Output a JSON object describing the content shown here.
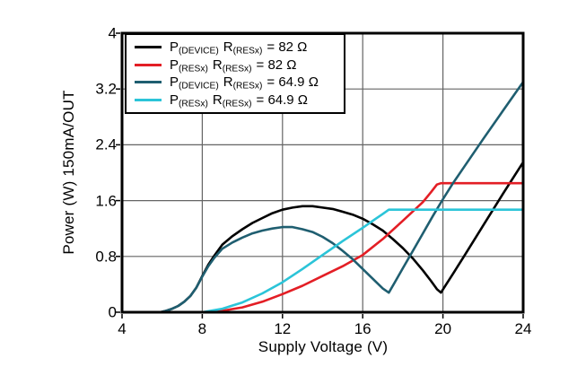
{
  "chart_data": {
    "type": "line",
    "title": "",
    "xlabel": "Supply Voltage (V)",
    "ylabel": "Power (W) 150mA/OUT",
    "xlim": [
      4,
      24
    ],
    "ylim": [
      0,
      4
    ],
    "xticks": [
      4,
      8,
      12,
      16,
      20,
      24
    ],
    "xtick_labels": [
      "4",
      "8",
      "12",
      "16",
      "20",
      "24"
    ],
    "yticks": [
      0,
      0.8,
      1.6,
      2.4,
      3.2,
      4
    ],
    "ytick_labels": [
      "0",
      "0.8",
      "1.6",
      "2.4",
      "3.2",
      "4"
    ],
    "grid": true,
    "grid_color": "#646464",
    "axis_color": "#000000",
    "legend_position": "top-left",
    "legend": [
      {
        "p": "P",
        "p_sub": "(DEVICE)",
        "r": "R",
        "r_sub": "(RESx)",
        "eq": "= 82 Ω",
        "color": "#000000"
      },
      {
        "p": "P",
        "p_sub": "(RESx)",
        "r": "R",
        "r_sub": "(RESx)",
        "eq": "= 82 Ω",
        "color": "#E31E25"
      },
      {
        "p": "P",
        "p_sub": "(DEVICE)",
        "r": "R",
        "r_sub": "(RESx)",
        "eq": "= 64.9 Ω",
        "color": "#1F5E70"
      },
      {
        "p": "P",
        "p_sub": "(RESx)",
        "r": "R",
        "r_sub": "(RESx)",
        "eq": "= 64.9 Ω",
        "color": "#2BC4D8"
      }
    ],
    "series": [
      {
        "name": "P(DEVICE) R(RESx) = 82 Ω",
        "color": "#000000",
        "points": [
          [
            5.9,
            0
          ],
          [
            6.2,
            0.02
          ],
          [
            6.5,
            0.05
          ],
          [
            6.8,
            0.09
          ],
          [
            7.1,
            0.15
          ],
          [
            7.4,
            0.23
          ],
          [
            7.7,
            0.35
          ],
          [
            8.0,
            0.52
          ],
          [
            8.3,
            0.68
          ],
          [
            8.6,
            0.81
          ],
          [
            9.0,
            0.97
          ],
          [
            9.5,
            1.09
          ],
          [
            10.0,
            1.19
          ],
          [
            10.5,
            1.28
          ],
          [
            11.0,
            1.35
          ],
          [
            11.5,
            1.42
          ],
          [
            12.0,
            1.47
          ],
          [
            12.5,
            1.5
          ],
          [
            13.0,
            1.52
          ],
          [
            13.5,
            1.52
          ],
          [
            14.0,
            1.5
          ],
          [
            14.5,
            1.48
          ],
          [
            15.0,
            1.44
          ],
          [
            15.5,
            1.4
          ],
          [
            16.0,
            1.34
          ],
          [
            16.5,
            1.26
          ],
          [
            17.0,
            1.17
          ],
          [
            17.5,
            1.05
          ],
          [
            18.0,
            0.92
          ],
          [
            18.5,
            0.77
          ],
          [
            19.0,
            0.6
          ],
          [
            19.4,
            0.45
          ],
          [
            19.7,
            0.33
          ],
          [
            19.9,
            0.28
          ],
          [
            20.1,
            0.37
          ],
          [
            20.5,
            0.55
          ],
          [
            21.0,
            0.78
          ],
          [
            22.0,
            1.24
          ],
          [
            23.0,
            1.7
          ],
          [
            24.0,
            2.15
          ]
        ]
      },
      {
        "name": "P(RESx) R(RESx) = 82 Ω",
        "color": "#E31E25",
        "points": [
          [
            8.2,
            0
          ],
          [
            9.0,
            0.02
          ],
          [
            10.0,
            0.07
          ],
          [
            11.0,
            0.15
          ],
          [
            12.0,
            0.26
          ],
          [
            13.0,
            0.38
          ],
          [
            14.0,
            0.52
          ],
          [
            15.0,
            0.66
          ],
          [
            16.0,
            0.82
          ],
          [
            17.0,
            1.05
          ],
          [
            18.0,
            1.31
          ],
          [
            19.0,
            1.58
          ],
          [
            19.4,
            1.72
          ],
          [
            19.7,
            1.83
          ],
          [
            19.9,
            1.85
          ],
          [
            24.0,
            1.85
          ]
        ]
      },
      {
        "name": "P(DEVICE) R(RESx) = 64.9 Ω",
        "color": "#1F5E70",
        "points": [
          [
            5.9,
            0
          ],
          [
            6.2,
            0.02
          ],
          [
            6.5,
            0.05
          ],
          [
            6.8,
            0.09
          ],
          [
            7.1,
            0.15
          ],
          [
            7.4,
            0.23
          ],
          [
            7.7,
            0.35
          ],
          [
            8.0,
            0.51
          ],
          [
            8.3,
            0.66
          ],
          [
            8.6,
            0.78
          ],
          [
            9.0,
            0.91
          ],
          [
            9.5,
            1.0
          ],
          [
            10.0,
            1.07
          ],
          [
            10.5,
            1.13
          ],
          [
            11.0,
            1.17
          ],
          [
            11.5,
            1.2
          ],
          [
            12.0,
            1.22
          ],
          [
            12.5,
            1.22
          ],
          [
            13.0,
            1.19
          ],
          [
            13.5,
            1.15
          ],
          [
            14.0,
            1.08
          ],
          [
            14.5,
            0.99
          ],
          [
            15.0,
            0.88
          ],
          [
            15.5,
            0.76
          ],
          [
            16.0,
            0.62
          ],
          [
            16.5,
            0.48
          ],
          [
            17.0,
            0.34
          ],
          [
            17.3,
            0.28
          ],
          [
            17.6,
            0.43
          ],
          [
            18.0,
            0.63
          ],
          [
            18.5,
            0.88
          ],
          [
            19.0,
            1.13
          ],
          [
            19.5,
            1.38
          ],
          [
            20.0,
            1.62
          ],
          [
            20.5,
            1.85
          ],
          [
            21.0,
            2.06
          ],
          [
            22.0,
            2.48
          ],
          [
            23.0,
            2.89
          ],
          [
            24.0,
            3.3
          ]
        ]
      },
      {
        "name": "P(RESx) R(RESx) = 64.9 Ω",
        "color": "#2BC4D8",
        "points": [
          [
            8.0,
            0
          ],
          [
            9.0,
            0.05
          ],
          [
            10.0,
            0.14
          ],
          [
            11.0,
            0.27
          ],
          [
            12.0,
            0.43
          ],
          [
            13.0,
            0.62
          ],
          [
            14.0,
            0.82
          ],
          [
            15.0,
            1.02
          ],
          [
            16.0,
            1.21
          ],
          [
            16.6,
            1.33
          ],
          [
            17.0,
            1.41
          ],
          [
            17.3,
            1.47
          ],
          [
            24.0,
            1.47
          ]
        ]
      }
    ]
  }
}
